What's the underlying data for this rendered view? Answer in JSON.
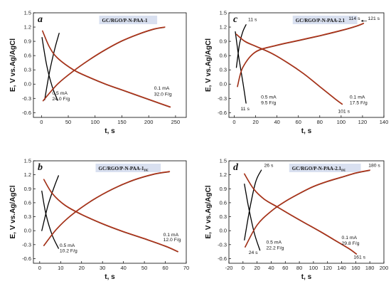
{
  "chart_data": [
    {
      "type": "line",
      "panel_label": "a",
      "title": "GC/RGO/P-N-PAA-1",
      "title_sub": "",
      "xlabel": "t, s",
      "ylabel": "E, V vs.Ag/AgCl",
      "xlim": [
        -15,
        270
      ],
      "ylim": [
        -0.7,
        1.5
      ],
      "xticks": [
        "0",
        "50",
        "100",
        "150",
        "200",
        "250"
      ],
      "yticks": [
        "-0.6",
        "-0.3",
        "0.0",
        "0.3",
        "0.6",
        "0.9",
        "1.2",
        "1.5"
      ],
      "series": [
        {
          "group": "0.5 mA",
          "curve": "charge",
          "color": "#000000",
          "x": [
            6,
            15,
            25,
            33
          ],
          "y": [
            -0.33,
            0.25,
            0.75,
            1.07
          ]
        },
        {
          "group": "0.5 mA",
          "curve": "discharge",
          "color": "#000000",
          "x": [
            1,
            10,
            20,
            30
          ],
          "y": [
            0.98,
            0.38,
            -0.05,
            -0.34
          ]
        },
        {
          "group": "0.1 mA",
          "curve": "charge",
          "color": "#b0351a",
          "x": [
            3,
            30,
            60,
            90,
            120,
            150,
            180,
            210,
            230
          ],
          "y": [
            -0.35,
            0.0,
            0.28,
            0.52,
            0.73,
            0.91,
            1.05,
            1.16,
            1.2
          ]
        },
        {
          "group": "0.1 mA",
          "curve": "discharge",
          "color": "#b0351a",
          "x": [
            2,
            15,
            30,
            60,
            90,
            120,
            150,
            180,
            210,
            240
          ],
          "y": [
            1.12,
            0.78,
            0.55,
            0.3,
            0.14,
            0.0,
            -0.12,
            -0.24,
            -0.36,
            -0.48
          ]
        }
      ],
      "annotations": [
        {
          "text": "0.5 mA",
          "x": 20,
          "y": -0.22
        },
        {
          "text": "24.0 F/g",
          "x": 20,
          "y": -0.34
        },
        {
          "text": "0.1 mA",
          "x": 210,
          "y": -0.12
        },
        {
          "text": "32.0 F/g",
          "x": 210,
          "y": -0.24
        }
      ]
    },
    {
      "type": "line",
      "panel_label": "c",
      "title": "GC/RGO/P-N-PAA-2.1",
      "title_sub": "",
      "xlabel": "t, s",
      "ylabel": "E, V vs.Ag/AgCl",
      "xlim": [
        -5,
        140
      ],
      "ylim": [
        -0.7,
        1.5
      ],
      "xticks": [
        "0",
        "20",
        "40",
        "60",
        "80",
        "100",
        "120",
        "140"
      ],
      "yticks": [
        "-0.6",
        "-0.3",
        "0.0",
        "0.3",
        "0.6",
        "0.9",
        "1.2",
        "1.5"
      ],
      "series": [
        {
          "group": "0.5 mA",
          "curve": "charge",
          "color": "#000000",
          "x": [
            2,
            5,
            8,
            11
          ],
          "y": [
            0.35,
            0.85,
            1.1,
            1.25
          ]
        },
        {
          "group": "0.5 mA",
          "curve": "discharge",
          "color": "#000000",
          "x": [
            1,
            4,
            8,
            11
          ],
          "y": [
            1.1,
            0.6,
            0.05,
            -0.4
          ]
        },
        {
          "group": "0.1 mA",
          "curve": "charge",
          "color": "#b0351a",
          "x": [
            3,
            8,
            20,
            40,
            60,
            80,
            100,
            114,
            121
          ],
          "y": [
            -0.05,
            0.35,
            0.68,
            0.82,
            0.92,
            1.02,
            1.13,
            1.22,
            1.28
          ]
        },
        {
          "group": "0.1 mA",
          "curve": "discharge",
          "color": "#b0351a",
          "x": [
            2,
            10,
            20,
            35,
            50,
            65,
            80,
            95,
            101
          ],
          "y": [
            1.05,
            0.9,
            0.8,
            0.65,
            0.45,
            0.22,
            -0.05,
            -0.32,
            -0.42
          ]
        }
      ],
      "annotations": [
        {
          "text": "11 s",
          "x": 13,
          "y": 1.33
        },
        {
          "text": "114 s",
          "x": 107,
          "y": 1.35
        },
        {
          "text": "121 s",
          "x": 125,
          "y": 1.35
        },
        {
          "text": "11 s",
          "x": 6,
          "y": -0.55
        },
        {
          "text": "0.5 mA",
          "x": 25,
          "y": -0.3
        },
        {
          "text": "9.5 F/g",
          "x": 25,
          "y": -0.42
        },
        {
          "text": "101 s",
          "x": 97,
          "y": -0.6
        },
        {
          "text": "0.1 mA",
          "x": 108,
          "y": -0.3
        },
        {
          "text": "17.5 F/g",
          "x": 108,
          "y": -0.42
        }
      ]
    },
    {
      "type": "line",
      "panel_label": "b",
      "title": "GC/RGO/P-N-PAA-1",
      "title_sub": "DE",
      "xlabel": "t, s",
      "ylabel": "E, V vs.Ag/AgCl",
      "xlim": [
        -3,
        70
      ],
      "ylim": [
        -0.7,
        1.5
      ],
      "xticks": [
        "0",
        "10",
        "20",
        "30",
        "40",
        "50",
        "60",
        "70"
      ],
      "yticks": [
        "-0.6",
        "-0.3",
        "0.0",
        "0.3",
        "0.6",
        "0.9",
        "1.2",
        "1.5"
      ],
      "series": [
        {
          "group": "0.5 mA",
          "curve": "charge",
          "color": "#000000",
          "x": [
            1,
            4,
            7,
            9
          ],
          "y": [
            0.0,
            0.55,
            0.95,
            1.18
          ]
        },
        {
          "group": "0.5 mA",
          "curve": "discharge",
          "color": "#000000",
          "x": [
            1,
            3,
            6,
            9
          ],
          "y": [
            0.85,
            0.35,
            -0.1,
            -0.38
          ]
        },
        {
          "group": "0.1 mA",
          "curve": "charge",
          "color": "#b0351a",
          "x": [
            2,
            8,
            15,
            25,
            35,
            45,
            55,
            62
          ],
          "y": [
            -0.32,
            0.03,
            0.33,
            0.65,
            0.9,
            1.09,
            1.22,
            1.27
          ]
        },
        {
          "group": "0.1 mA",
          "curve": "discharge",
          "color": "#b0351a",
          "x": [
            2,
            6,
            12,
            20,
            30,
            40,
            50,
            60,
            66
          ],
          "y": [
            1.1,
            0.8,
            0.55,
            0.35,
            0.15,
            -0.02,
            -0.17,
            -0.33,
            -0.45
          ]
        }
      ],
      "annotations": [
        {
          "text": "0.5 mA",
          "x": 9.5,
          "y": -0.35
        },
        {
          "text": "10.2 F/g",
          "x": 9.5,
          "y": -0.46
        },
        {
          "text": "0.1 mA",
          "x": 59,
          "y": -0.12
        },
        {
          "text": "12.0 F/g",
          "x": 59,
          "y": -0.23
        }
      ]
    },
    {
      "type": "line",
      "panel_label": "d",
      "title": "GC/RGO/P-N-PAA-2.1",
      "title_sub": "DE",
      "xlabel": "t, s",
      "ylabel": "E, V vs.Ag/AgCl",
      "xlim": [
        -20,
        200
      ],
      "ylim": [
        -0.7,
        1.5
      ],
      "xticks": [
        "-20",
        "0",
        "20",
        "40",
        "60",
        "80",
        "100",
        "120",
        "140",
        "160",
        "180",
        "200"
      ],
      "yticks": [
        "-0.6",
        "-0.3",
        "0.0",
        "0.3",
        "0.6",
        "0.9",
        "1.2",
        "1.5"
      ],
      "series": [
        {
          "group": "0.5 mA",
          "curve": "charge",
          "color": "#000000",
          "x": [
            2,
            10,
            18,
            26
          ],
          "y": [
            -0.2,
            0.5,
            1.05,
            1.3
          ]
        },
        {
          "group": "0.5 mA",
          "curve": "discharge",
          "color": "#000000",
          "x": [
            2,
            8,
            16,
            24
          ],
          "y": [
            1.0,
            0.5,
            -0.05,
            -0.42
          ]
        },
        {
          "group": "0.1 mA",
          "curve": "charge",
          "color": "#b0351a",
          "x": [
            3,
            20,
            40,
            60,
            80,
            100,
            120,
            140,
            160,
            180
          ],
          "y": [
            -0.35,
            0.12,
            0.42,
            0.63,
            0.8,
            0.95,
            1.06,
            1.15,
            1.24,
            1.3
          ]
        },
        {
          "group": "0.1 mA",
          "curve": "discharge",
          "color": "#b0351a",
          "x": [
            2,
            15,
            30,
            50,
            70,
            90,
            110,
            130,
            150,
            161
          ],
          "y": [
            1.22,
            0.9,
            0.68,
            0.5,
            0.32,
            0.15,
            -0.02,
            -0.2,
            -0.38,
            -0.5
          ]
        }
      ],
      "annotations": [
        {
          "text": "26 s",
          "x": 30,
          "y": 1.37
        },
        {
          "text": "180 s",
          "x": 178,
          "y": 1.37
        },
        {
          "text": "0.5 mA",
          "x": 33,
          "y": -0.28
        },
        {
          "text": "22.2 F/g",
          "x": 33,
          "y": -0.4
        },
        {
          "text": "24 s",
          "x": 8,
          "y": -0.5
        },
        {
          "text": "0.1 mA",
          "x": 140,
          "y": -0.18
        },
        {
          "text": "29.8 F/g",
          "x": 140,
          "y": -0.3
        },
        {
          "text": "161 s",
          "x": 157,
          "y": -0.6
        }
      ]
    }
  ]
}
